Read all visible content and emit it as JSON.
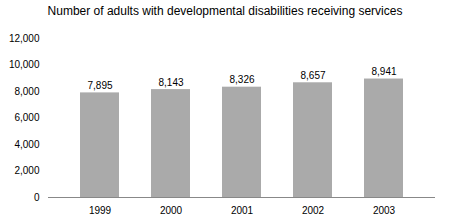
{
  "chart_data": {
    "type": "bar",
    "title": "Number of adults with developmental disabilities receiving services",
    "categories": [
      "1999",
      "2000",
      "2001",
      "2002",
      "2003"
    ],
    "values": [
      7895,
      8143,
      8326,
      8657,
      8941
    ],
    "value_labels": [
      "7,895",
      "8,143",
      "8,326",
      "8,657",
      "8,941"
    ],
    "data_labels": true,
    "color": "#aaaaaa",
    "ylim": [
      0,
      12000
    ],
    "yticks": [
      0,
      {
        "value": 2000,
        "label": "2,000"
      },
      {
        "value": 4000,
        "label": "4,000"
      },
      {
        "value": 6000,
        "label": "6,000"
      },
      {
        "value": 8000,
        "label": "8,000"
      },
      {
        "value": 10000,
        "label": "10,000"
      },
      {
        "value": 12000,
        "label": "12,000"
      }
    ],
    "grid": false
  }
}
